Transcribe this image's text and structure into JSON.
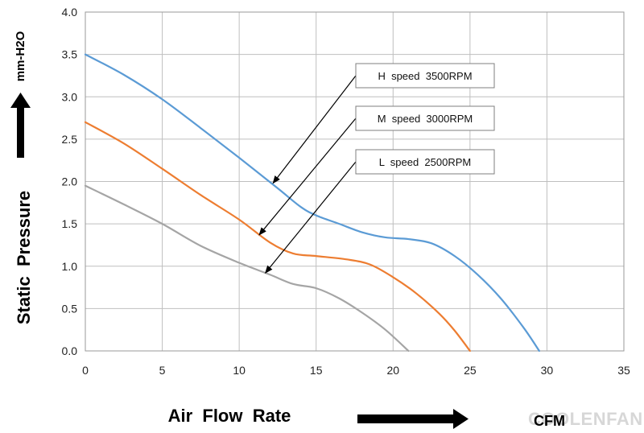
{
  "chart_data": {
    "type": "line",
    "title": "",
    "xlabel": "Air  Flow  Rate",
    "ylabel": "Static  Pressure",
    "xunit": "CFM",
    "yunit": "mm-H2O",
    "xlim": [
      0,
      35
    ],
    "ylim": [
      0,
      4.0
    ],
    "xticks": [
      0,
      5,
      10,
      15,
      20,
      25,
      30,
      35
    ],
    "yticks": [
      "0.0",
      "0.5",
      "1.0",
      "1.5",
      "2.0",
      "2.5",
      "3.0",
      "3.5",
      "4.0"
    ],
    "grid": true,
    "series": [
      {
        "name": "H  speed  3500RPM",
        "color": "#5b9bd5",
        "points": [
          [
            0,
            3.5
          ],
          [
            2.5,
            3.26
          ],
          [
            5,
            2.97
          ],
          [
            7.5,
            2.63
          ],
          [
            10,
            2.28
          ],
          [
            12.5,
            1.92
          ],
          [
            14,
            1.7
          ],
          [
            15,
            1.6
          ],
          [
            16.5,
            1.5
          ],
          [
            18,
            1.4
          ],
          [
            19.5,
            1.34
          ],
          [
            21,
            1.32
          ],
          [
            22.5,
            1.27
          ],
          [
            24,
            1.12
          ],
          [
            25.5,
            0.9
          ],
          [
            27,
            0.62
          ],
          [
            28.5,
            0.27
          ],
          [
            29.5,
            0.0
          ]
        ]
      },
      {
        "name": "M  speed  3000RPM",
        "color": "#ed7d31",
        "points": [
          [
            0,
            2.7
          ],
          [
            2.5,
            2.45
          ],
          [
            5,
            2.15
          ],
          [
            7.5,
            1.84
          ],
          [
            10,
            1.55
          ],
          [
            12,
            1.28
          ],
          [
            13.5,
            1.15
          ],
          [
            15,
            1.12
          ],
          [
            17,
            1.08
          ],
          [
            18.5,
            1.02
          ],
          [
            20,
            0.87
          ],
          [
            21.5,
            0.68
          ],
          [
            23,
            0.44
          ],
          [
            24,
            0.24
          ],
          [
            25,
            0.0
          ]
        ]
      },
      {
        "name": "L  speed  2500RPM",
        "color": "#a5a5a5",
        "points": [
          [
            0,
            1.95
          ],
          [
            2.5,
            1.73
          ],
          [
            5,
            1.5
          ],
          [
            7.5,
            1.24
          ],
          [
            10,
            1.04
          ],
          [
            12,
            0.9
          ],
          [
            13.5,
            0.79
          ],
          [
            15,
            0.74
          ],
          [
            16.5,
            0.62
          ],
          [
            18,
            0.45
          ],
          [
            19.5,
            0.25
          ],
          [
            21,
            0.0
          ]
        ]
      }
    ],
    "callouts": [
      {
        "label": "H  speed  3500RPM",
        "series": 0,
        "target": [
          12.2,
          1.98
        ]
      },
      {
        "label": "M  speed  3000RPM",
        "series": 1,
        "target": [
          11.3,
          1.37
        ]
      },
      {
        "label": "L  speed  2500RPM",
        "series": 2,
        "target": [
          11.7,
          0.92
        ]
      }
    ]
  },
  "watermark": "COOLENFAN"
}
